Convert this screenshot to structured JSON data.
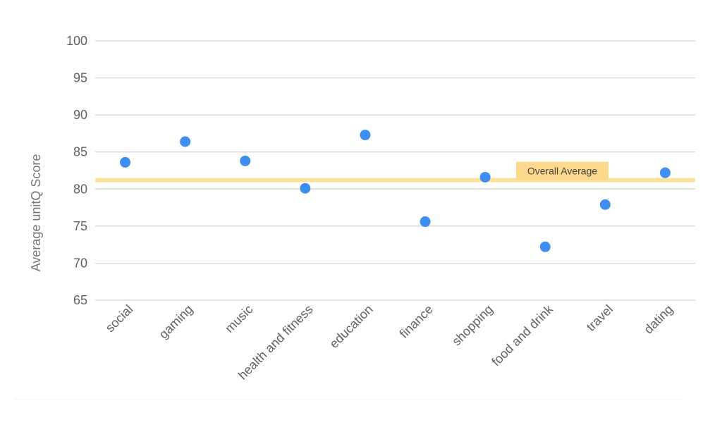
{
  "chart_data": {
    "type": "scatter",
    "title": "",
    "xlabel": "",
    "ylabel": "Average unitQ Score",
    "ylim": [
      65,
      100
    ],
    "yticks": [
      65,
      70,
      75,
      80,
      85,
      90,
      95,
      100
    ],
    "grid": true,
    "categories": [
      "social",
      "gaming",
      "music",
      "health and fitness",
      "education",
      "finance",
      "shopping",
      "food and drink",
      "travel",
      "dating"
    ],
    "values": [
      83.6,
      86.4,
      83.8,
      80.1,
      87.3,
      75.6,
      81.6,
      72.2,
      77.9,
      82.2
    ],
    "reference_line": {
      "label": "Overall Average",
      "value": 81.2
    },
    "colors": {
      "points": "#3d8ef0",
      "reference_line": "#fce29a",
      "reference_label_bg": "#fcd98c",
      "grid": "#d3d3d3",
      "tick_text": "#616161"
    }
  }
}
